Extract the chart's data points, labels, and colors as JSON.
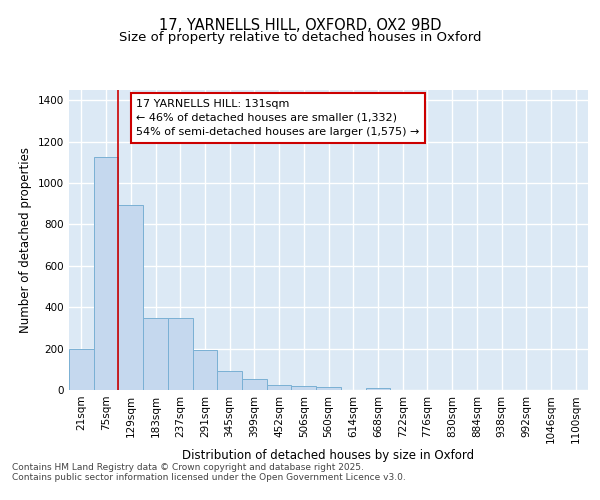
{
  "title_line1": "17, YARNELLS HILL, OXFORD, OX2 9BD",
  "title_line2": "Size of property relative to detached houses in Oxford",
  "xlabel": "Distribution of detached houses by size in Oxford",
  "ylabel": "Number of detached properties",
  "categories": [
    "21sqm",
    "75sqm",
    "129sqm",
    "183sqm",
    "237sqm",
    "291sqm",
    "345sqm",
    "399sqm",
    "452sqm",
    "506sqm",
    "560sqm",
    "614sqm",
    "668sqm",
    "722sqm",
    "776sqm",
    "830sqm",
    "884sqm",
    "938sqm",
    "992sqm",
    "1046sqm",
    "1100sqm"
  ],
  "values": [
    200,
    1125,
    895,
    350,
    350,
    195,
    90,
    55,
    25,
    20,
    15,
    0,
    10,
    0,
    0,
    0,
    0,
    0,
    0,
    0,
    0
  ],
  "bar_color": "#c5d8ee",
  "bar_edge_color": "#7ab0d4",
  "bg_color": "#dce9f5",
  "grid_color": "#ffffff",
  "vline_color": "#cc0000",
  "annotation_box_edgecolor": "#cc0000",
  "annotation_text_line1": "17 YARNELLS HILL: 131sqm",
  "annotation_text_line2": "← 46% of detached houses are smaller (1,332)",
  "annotation_text_line3": "54% of semi-detached houses are larger (1,575) →",
  "ylim_max": 1450,
  "yticks": [
    0,
    200,
    400,
    600,
    800,
    1000,
    1200,
    1400
  ],
  "footnote": "Contains HM Land Registry data © Crown copyright and database right 2025.\nContains public sector information licensed under the Open Government Licence v3.0.",
  "title_fontsize": 10.5,
  "subtitle_fontsize": 9.5,
  "axis_label_fontsize": 8.5,
  "tick_fontsize": 7.5,
  "annot_fontsize": 8,
  "footnote_fontsize": 6.5
}
